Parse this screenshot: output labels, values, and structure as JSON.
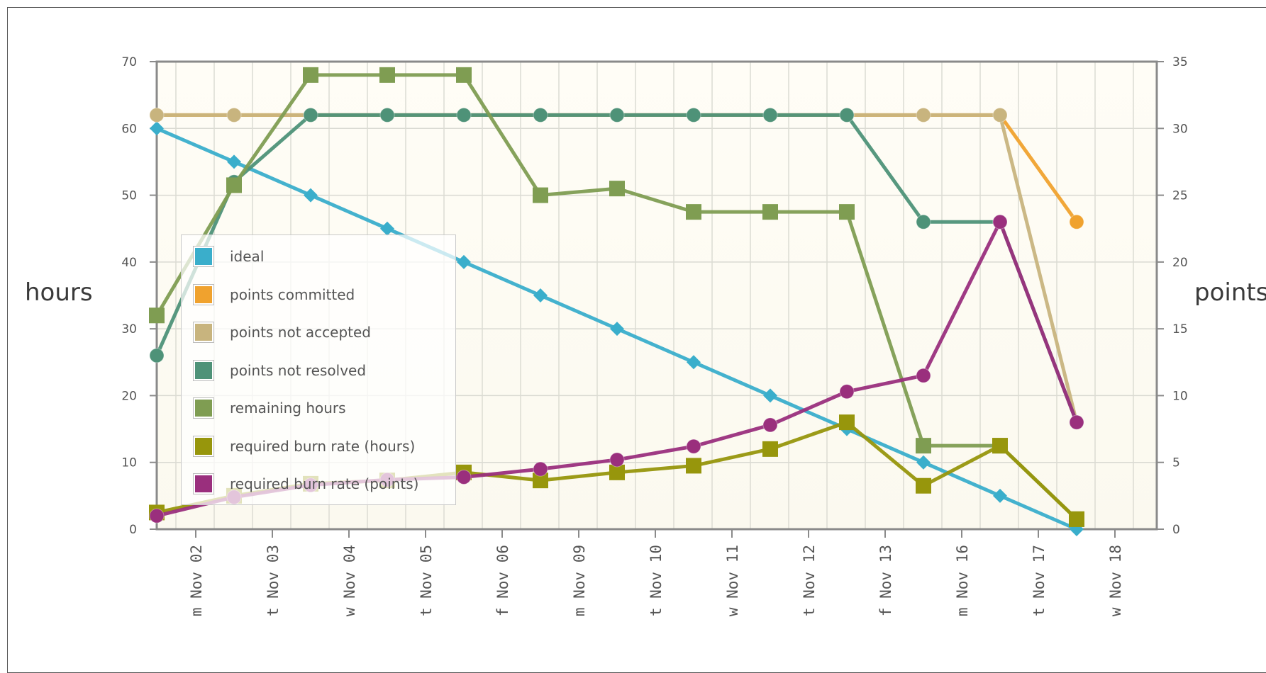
{
  "chart_data": {
    "type": "line",
    "categories": [
      "m Nov 02",
      "t Nov 03",
      "w Nov 04",
      "t Nov 05",
      "f Nov 06",
      "m Nov 09",
      "t Nov 10",
      "w Nov 11",
      "t Nov 12",
      "f Nov 13",
      "m Nov 16",
      "t Nov 17",
      "w Nov 18"
    ],
    "x": [
      "Nov 02",
      "Nov 02.5",
      "Nov 03.5",
      "Nov 04.5",
      "Nov 05.5",
      "Nov 06.5",
      "Nov 09.5",
      "Nov 10.5",
      "Nov 11.5",
      "Nov 12.5",
      "Nov 13.5",
      "Nov 16.5",
      "Nov 17.5"
    ],
    "ylabel": "hours",
    "y2label": "points",
    "ylim": [
      0,
      70
    ],
    "y2lim": [
      0,
      35
    ],
    "yticks": [
      "0",
      "10",
      "20",
      "30",
      "40",
      "50",
      "60",
      "70"
    ],
    "y2ticks": [
      "0",
      "5",
      "10",
      "15",
      "20",
      "25",
      "30",
      "35"
    ],
    "grid": true,
    "legend_position": "left",
    "series": [
      {
        "name": "ideal",
        "axis": "hours",
        "color": "#3aaecb",
        "marker": "diamond",
        "values": [
          60,
          55,
          50,
          45,
          40,
          35,
          30,
          25,
          20,
          15,
          10,
          5,
          0
        ]
      },
      {
        "name": "points committed",
        "axis": "points",
        "color": "#f0a22e",
        "marker": "circle",
        "values": [
          31,
          31,
          31,
          31,
          31,
          31,
          31,
          31,
          31,
          31,
          31,
          31,
          23
        ]
      },
      {
        "name": "points not accepted",
        "axis": "points",
        "color": "#c8b47e",
        "marker": "circle",
        "values": [
          31,
          31,
          31,
          31,
          31,
          31,
          31,
          31,
          31,
          31,
          31,
          31,
          8
        ]
      },
      {
        "name": "points not resolved",
        "axis": "points",
        "color": "#4e9278",
        "marker": "circle",
        "values": [
          13,
          26,
          31,
          31,
          31,
          31,
          31,
          31,
          31,
          31,
          23,
          23,
          8
        ]
      },
      {
        "name": "remaining hours",
        "axis": "hours",
        "color": "#7f9d52",
        "marker": "square",
        "values": [
          32,
          51.5,
          68,
          68,
          68,
          50,
          51,
          47.5,
          47.5,
          47.5,
          12.5,
          12.5,
          1.5
        ]
      },
      {
        "name": "required burn rate (hours)",
        "axis": "hours",
        "color": "#97960c",
        "marker": "square",
        "values": [
          2.5,
          5,
          6.8,
          7.3,
          8.5,
          7.3,
          8.5,
          9.5,
          12,
          16,
          6.5,
          12.5,
          1.5
        ]
      },
      {
        "name": "required burn rate (points)",
        "axis": "points",
        "color": "#9a2f7d",
        "marker": "circle",
        "values": [
          1,
          2.4,
          3.3,
          3.7,
          3.9,
          4.5,
          5.2,
          6.2,
          7.8,
          10.3,
          11.5,
          23,
          8
        ]
      }
    ]
  }
}
